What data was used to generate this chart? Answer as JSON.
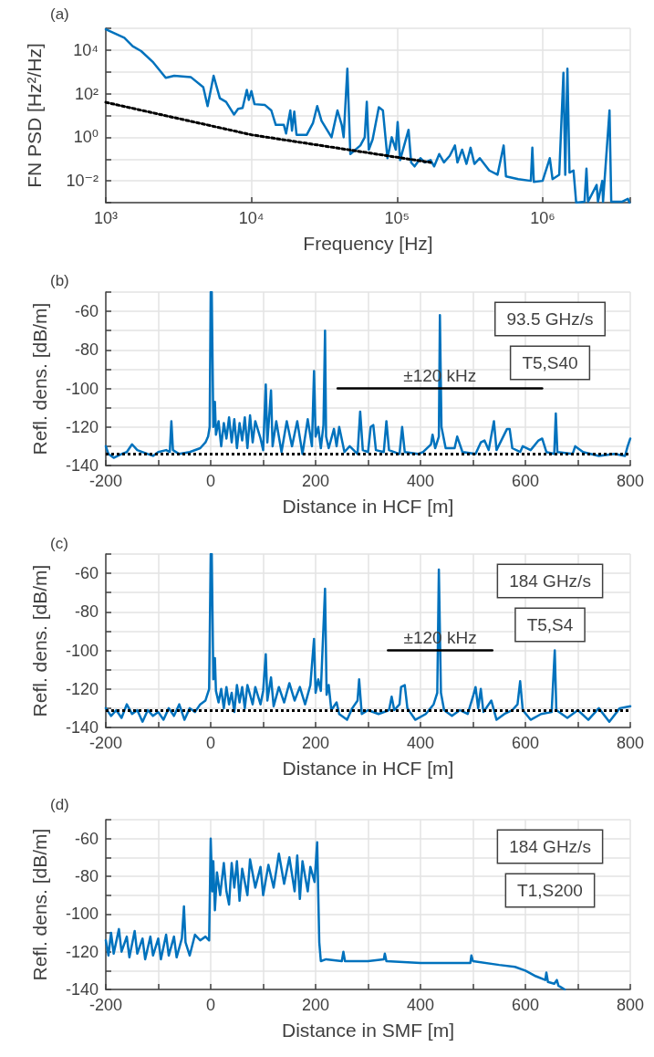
{
  "chart_data": [
    {
      "type": "line",
      "title": "(a)",
      "xlabel": "Frequency [Hz]",
      "ylabel": "FN PSD [Hz²/Hz]",
      "log": "xy",
      "grid": true,
      "legend": false,
      "marker": "none",
      "xlim": [
        1000,
        4000000
      ],
      "ylim": [
        0.001,
        100000
      ],
      "xticks": [
        {
          "value": 1000,
          "label": "10³"
        },
        {
          "value": 10000,
          "label": "10⁴"
        },
        {
          "value": 100000,
          "label": "10⁵"
        },
        {
          "value": 1000000,
          "label": "10⁶"
        }
      ],
      "yticks": [
        {
          "value": 0.001,
          "label": null
        },
        {
          "value": 0.01,
          "label": "10⁻²"
        },
        {
          "value": 0.1,
          "label": null
        },
        {
          "value": 1,
          "label": "10⁰"
        },
        {
          "value": 10,
          "label": null
        },
        {
          "value": 100,
          "label": "10²"
        },
        {
          "value": 1000,
          "label": null
        },
        {
          "value": 10000,
          "label": "10⁴"
        },
        {
          "value": 100000,
          "label": null
        }
      ],
      "x": [
        1000,
        1340,
        1530,
        1750,
        2120,
        2580,
        2950,
        3830,
        4670,
        5000,
        5500,
        6070,
        6700,
        7600,
        8100,
        8700,
        9300,
        9600,
        10000,
        10500,
        12400,
        13700,
        14700,
        16700,
        17300,
        18500,
        19000,
        19700,
        20400,
        24000,
        26500,
        28300,
        30300,
        35500,
        39000,
        41700,
        43000,
        45600,
        47800,
        56000,
        60000,
        62000,
        64000,
        68000,
        75000,
        80000,
        86000,
        92000,
        98000,
        101000,
        105000,
        120000,
        125000,
        132000,
        145000,
        155000,
        170000,
        180000,
        195000,
        210000,
        230000,
        250000,
        260000,
        280000,
        300000,
        320000,
        340000,
        370000,
        430000,
        490000,
        540000,
        560000,
        680000,
        830000,
        850000,
        870000,
        1000000,
        1120000,
        1170000,
        1300000,
        1390000,
        1430000,
        1480000,
        1530000,
        1630000,
        1700000,
        1940000,
        2000000,
        2050000,
        2350000,
        2400000,
        2570000,
        2600000,
        2880000,
        2960000,
        3500000,
        3850000,
        3950000
      ],
      "series": [
        {
          "color": "#0072bd",
          "values": [
            90000,
            37000,
            15000,
            9000,
            2700,
            530,
            660,
            580,
            200,
            27,
            660,
            62,
            42,
            11,
            20,
            22,
            150,
            52,
            130,
            33,
            30,
            17,
            3.7,
            3.7,
            1.5,
            17,
            2,
            15,
            1.3,
            1.3,
            4.6,
            27,
            5.7,
            1,
            17,
            3.7,
            1,
            1400,
            0.17,
            0.42,
            1,
            42,
            0.27,
            0.8,
            24,
            17,
            0.11,
            1,
            0.27,
            5,
            0.09,
            2.2,
            0.07,
            0.046,
            0.11,
            0.07,
            0.09,
            0.046,
            0.17,
            0.07,
            0.14,
            0.42,
            0.07,
            0.27,
            0.06,
            0.33,
            0.06,
            0.11,
            0.03,
            0.019,
            0.42,
            0.016,
            0.012,
            0.01,
            0.33,
            0.009,
            0.01,
            0.11,
            0.012,
            0.019,
            900,
            0.019,
            1400,
            0.024,
            0.03,
            0.001,
            0.0011,
            0.036,
            0.0011,
            0.0065,
            0.0011,
            0.01,
            0.0011,
            17,
            0.0011,
            0.0011,
            0.0015,
            0.001
          ]
        },
        {
          "color": "#000000",
          "line_style": "dotted",
          "x": [
            1000,
            10000,
            170000
          ],
          "values": [
            40,
            1.3,
            0.07
          ]
        }
      ]
    },
    {
      "type": "line",
      "title": "(b)",
      "xlabel": "Distance in HCF [m]",
      "ylabel": "Refl. dens. [dB/m]",
      "grid": true,
      "legend": false,
      "marker": "none",
      "xlim": [
        -200,
        800
      ],
      "ylim": [
        -140,
        -50
      ],
      "xticks": [
        -200,
        {
          "value": -100,
          "label": null
        },
        0,
        {
          "value": 100,
          "label": null
        },
        200,
        {
          "value": 300,
          "label": null
        },
        400,
        {
          "value": 500,
          "label": null
        },
        600,
        {
          "value": 700,
          "label": null
        },
        800
      ],
      "yticks": [
        -140,
        {
          "value": -130,
          "label": null
        },
        -120,
        {
          "value": -110,
          "label": null
        },
        -100,
        {
          "value": -90,
          "label": null
        },
        -80,
        {
          "value": -70,
          "label": null
        },
        -60,
        {
          "value": -50,
          "label": null
        }
      ],
      "annotations": [
        "93.5 GHz/s",
        "T5,S40"
      ],
      "ref_lines": [
        {
          "axis": "y",
          "value": -134,
          "line_style": "dotted",
          "color": "#000000"
        }
      ],
      "x": [
        -200,
        -195,
        -185,
        -170,
        -160,
        -150,
        -140,
        -120,
        -110,
        -100,
        -85,
        -78,
        -75,
        -72,
        -60,
        -40,
        -20,
        -10,
        -5,
        -2,
        0,
        2,
        5,
        8,
        10,
        15,
        20,
        25,
        30,
        35,
        40,
        45,
        50,
        55,
        60,
        65,
        70,
        75,
        80,
        85,
        95,
        100,
        105,
        108,
        115,
        118,
        125,
        135,
        145,
        155,
        165,
        175,
        185,
        193,
        197,
        200,
        205,
        210,
        215,
        218,
        220,
        225,
        235,
        240,
        245,
        255,
        265,
        280,
        285,
        290,
        300,
        305,
        310,
        315,
        330,
        335,
        340,
        360,
        365,
        370,
        395,
        405,
        420,
        423,
        428,
        435,
        437,
        440,
        448,
        465,
        470,
        480,
        505,
        515,
        522,
        530,
        540,
        545,
        565,
        570,
        575,
        590,
        595,
        610,
        625,
        632,
        640,
        655,
        658,
        661,
        690,
        695,
        710,
        740,
        770,
        790,
        795,
        800
      ],
      "series": [
        {
          "color": "#0072bd",
          "values": [
            -130,
            -134,
            -136,
            -134,
            -133,
            -129,
            -132,
            -134,
            -135,
            -133,
            -132,
            -133,
            -117,
            -132,
            -134,
            -133,
            -131,
            -128,
            -125,
            -120,
            -50,
            -50,
            -120,
            -107,
            -124,
            -117,
            -130,
            -118,
            -126,
            -115,
            -128,
            -116,
            -131,
            -118,
            -127,
            -115,
            -131,
            -114,
            -128,
            -117,
            -126,
            -132,
            -98,
            -128,
            -101,
            -130,
            -117,
            -133,
            -117,
            -130,
            -117,
            -134,
            -116,
            -130,
            -91,
            -125,
            -120,
            -131,
            -119,
            -70,
            -125,
            -131,
            -121,
            -130,
            -120,
            -133,
            -130,
            -134,
            -112,
            -132,
            -133,
            -120,
            -119,
            -132,
            -133,
            -117,
            -132,
            -134,
            -120,
            -133,
            -134,
            -133,
            -129,
            -124,
            -131,
            -125,
            -62,
            -120,
            -131,
            -131,
            -125,
            -133,
            -134,
            -128,
            -127,
            -132,
            -117,
            -132,
            -121,
            -121,
            -131,
            -133,
            -130,
            -132,
            -127,
            -126,
            -133,
            -134,
            -113,
            -133,
            -134,
            -130,
            -133,
            -135,
            -134,
            -135,
            -130,
            -126
          ]
        },
        {
          "name": "±120 kHz",
          "color": "#000000",
          "x": [
            242,
            632
          ],
          "values": [
            -100,
            -100
          ]
        }
      ]
    },
    {
      "type": "line",
      "title": "(c)",
      "xlabel": "Distance in HCF [m]",
      "ylabel": "Refl. dens. [dB/m]",
      "grid": true,
      "legend": false,
      "marker": "none",
      "xlim": [
        -200,
        800
      ],
      "ylim": [
        -140,
        -50
      ],
      "xticks": [
        -200,
        {
          "value": -100,
          "label": null
        },
        0,
        {
          "value": 100,
          "label": null
        },
        200,
        {
          "value": 300,
          "label": null
        },
        400,
        {
          "value": 500,
          "label": null
        },
        600,
        {
          "value": 700,
          "label": null
        },
        800
      ],
      "yticks": [
        -140,
        {
          "value": -130,
          "label": null
        },
        -120,
        {
          "value": -110,
          "label": null
        },
        -100,
        {
          "value": -90,
          "label": null
        },
        -80,
        {
          "value": -70,
          "label": null
        },
        -60,
        {
          "value": -50,
          "label": null
        }
      ],
      "annotations": [
        "184 GHz/s",
        "T5,S4"
      ],
      "ref_lines": [
        {
          "axis": "y",
          "value": -131,
          "line_style": "dotted",
          "color": "#000000"
        }
      ],
      "x": [
        -200,
        -190,
        -180,
        -170,
        -160,
        -150,
        -140,
        -130,
        -120,
        -110,
        -100,
        -90,
        -80,
        -70,
        -60,
        -50,
        -40,
        -30,
        -20,
        -10,
        -3,
        0,
        2,
        5,
        8,
        10,
        15,
        20,
        25,
        30,
        35,
        40,
        45,
        50,
        55,
        60,
        65,
        70,
        80,
        85,
        95,
        100,
        105,
        108,
        115,
        120,
        130,
        140,
        150,
        160,
        170,
        180,
        190,
        197,
        200,
        205,
        210,
        218,
        221,
        225,
        230,
        240,
        245,
        260,
        270,
        280,
        283,
        288,
        300,
        320,
        340,
        345,
        350,
        360,
        363,
        370,
        375,
        390,
        410,
        425,
        432,
        435,
        439,
        445,
        460,
        475,
        490,
        500,
        505,
        510,
        515,
        520,
        535,
        545,
        560,
        575,
        585,
        590,
        595,
        610,
        630,
        650,
        656,
        659,
        680,
        700,
        720,
        740,
        760,
        780,
        800
      ],
      "series": [
        {
          "color": "#0072bd",
          "values": [
            -130,
            -134,
            -131,
            -135,
            -128,
            -133,
            -131,
            -137,
            -131,
            -134,
            -132,
            -136,
            -130,
            -134,
            -128,
            -136,
            -130,
            -132,
            -128,
            -126,
            -120,
            -50,
            -50,
            -115,
            -104,
            -121,
            -127,
            -120,
            -130,
            -119,
            -128,
            -122,
            -132,
            -118,
            -127,
            -119,
            -130,
            -118,
            -128,
            -119,
            -128,
            -121,
            -102,
            -126,
            -114,
            -129,
            -119,
            -127,
            -117,
            -126,
            -119,
            -128,
            -118,
            -94,
            -122,
            -115,
            -121,
            -68,
            -123,
            -118,
            -131,
            -127,
            -133,
            -136,
            -130,
            -126,
            -115,
            -133,
            -131,
            -133,
            -131,
            -124,
            -131,
            -128,
            -119,
            -118,
            -130,
            -136,
            -133,
            -128,
            -122,
            -58,
            -122,
            -131,
            -134,
            -131,
            -133,
            -124,
            -119,
            -130,
            -120,
            -132,
            -126,
            -136,
            -133,
            -131,
            -128,
            -116,
            -131,
            -136,
            -133,
            -132,
            -100,
            -131,
            -135,
            -131,
            -136,
            -130,
            -137,
            -130,
            -129
          ]
        },
        {
          "name": "±120 kHz",
          "color": "#000000",
          "x": [
            338,
            537
          ],
          "values": [
            -100,
            -100
          ]
        }
      ]
    },
    {
      "type": "line",
      "title": "(d)",
      "xlabel": "Distance in SMF [m]",
      "ylabel": "Refl. dens. [dB/m]",
      "grid": true,
      "legend": false,
      "marker": "none",
      "xlim": [
        -200,
        800
      ],
      "ylim": [
        -140,
        -50
      ],
      "xticks": [
        -200,
        {
          "value": -100,
          "label": null
        },
        0,
        {
          "value": 100,
          "label": null
        },
        200,
        {
          "value": 300,
          "label": null
        },
        400,
        {
          "value": 500,
          "label": null
        },
        600,
        {
          "value": 700,
          "label": null
        },
        800
      ],
      "yticks": [
        -140,
        {
          "value": -130,
          "label": null
        },
        -120,
        {
          "value": -110,
          "label": null
        },
        -100,
        {
          "value": -90,
          "label": null
        },
        -80,
        {
          "value": -70,
          "label": null
        },
        -60,
        {
          "value": -50,
          "label": null
        }
      ],
      "annotations": [
        "184 GHz/s",
        "T1,S200"
      ],
      "x": [
        -200,
        -195,
        -190,
        -185,
        -175,
        -170,
        -160,
        -155,
        -145,
        -140,
        -130,
        -125,
        -115,
        -110,
        -100,
        -95,
        -85,
        -80,
        -70,
        -65,
        -55,
        -51,
        -48,
        -40,
        -30,
        -20,
        -10,
        -3,
        0,
        3,
        5,
        8,
        12,
        18,
        25,
        30,
        35,
        40,
        45,
        50,
        55,
        60,
        70,
        75,
        85,
        95,
        100,
        110,
        120,
        130,
        140,
        150,
        160,
        165,
        170,
        175,
        185,
        190,
        198,
        203,
        207,
        210,
        220,
        250,
        253,
        256,
        300,
        330,
        332,
        335,
        400,
        450,
        495,
        497,
        500,
        550,
        580,
        600,
        620,
        638,
        640,
        643,
        655,
        660,
        663,
        675
      ],
      "series": [
        {
          "color": "#0072bd",
          "values": [
            -114,
            -122,
            -110,
            -121,
            -108,
            -120,
            -112,
            -123,
            -109,
            -121,
            -113,
            -124,
            -112,
            -122,
            -113,
            -124,
            -111,
            -122,
            -112,
            -123,
            -113,
            -96,
            -115,
            -122,
            -111,
            -114,
            -112,
            -114,
            -60,
            -88,
            -72,
            -98,
            -78,
            -90,
            -73,
            -88,
            -95,
            -73,
            -86,
            -72,
            -93,
            -76,
            -90,
            -71,
            -86,
            -75,
            -90,
            -74,
            -86,
            -68,
            -84,
            -70,
            -88,
            -69,
            -92,
            -72,
            -88,
            -75,
            -83,
            -62,
            -115,
            -125,
            -124,
            -125,
            -120,
            -125,
            -125,
            -124,
            -121,
            -125,
            -126,
            -126,
            -126,
            -122,
            -125,
            -127,
            -128,
            -130,
            -133,
            -135,
            -131,
            -136,
            -137,
            -135,
            -138,
            -140
          ]
        }
      ]
    }
  ]
}
